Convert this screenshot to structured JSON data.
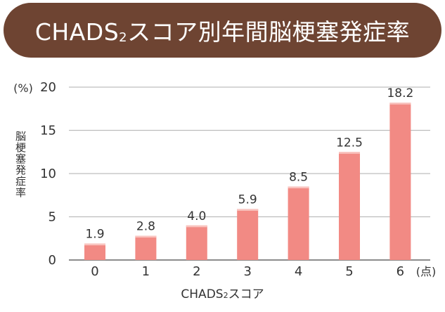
{
  "chart_data": {
    "type": "bar",
    "title_main": "CHADS",
    "title_sub": "2",
    "title_rest": "スコア別年間脳梗塞発症率",
    "ylabel": "脳梗塞発症率",
    "y_unit": "(%)",
    "xlabel_main": "CHADS",
    "xlabel_sub": "2",
    "xlabel_rest": "スコア",
    "x_unit": "(点)",
    "categories": [
      "0",
      "1",
      "2",
      "3",
      "4",
      "5",
      "6"
    ],
    "values": [
      1.9,
      2.8,
      4.0,
      5.9,
      8.5,
      12.5,
      18.2
    ],
    "value_labels": [
      "1.9",
      "2.8",
      "4.0",
      "5.9",
      "8.5",
      "12.5",
      "18.2"
    ],
    "yticks": [
      "0",
      "5",
      "10",
      "15",
      "20"
    ],
    "ylim": [
      0,
      20
    ],
    "grid": true,
    "colors": {
      "bar": "#f28a84",
      "bar_highlight": "#f9c4bf",
      "grid": "#bdbdbd",
      "title_bg": "#6e4432"
    }
  }
}
